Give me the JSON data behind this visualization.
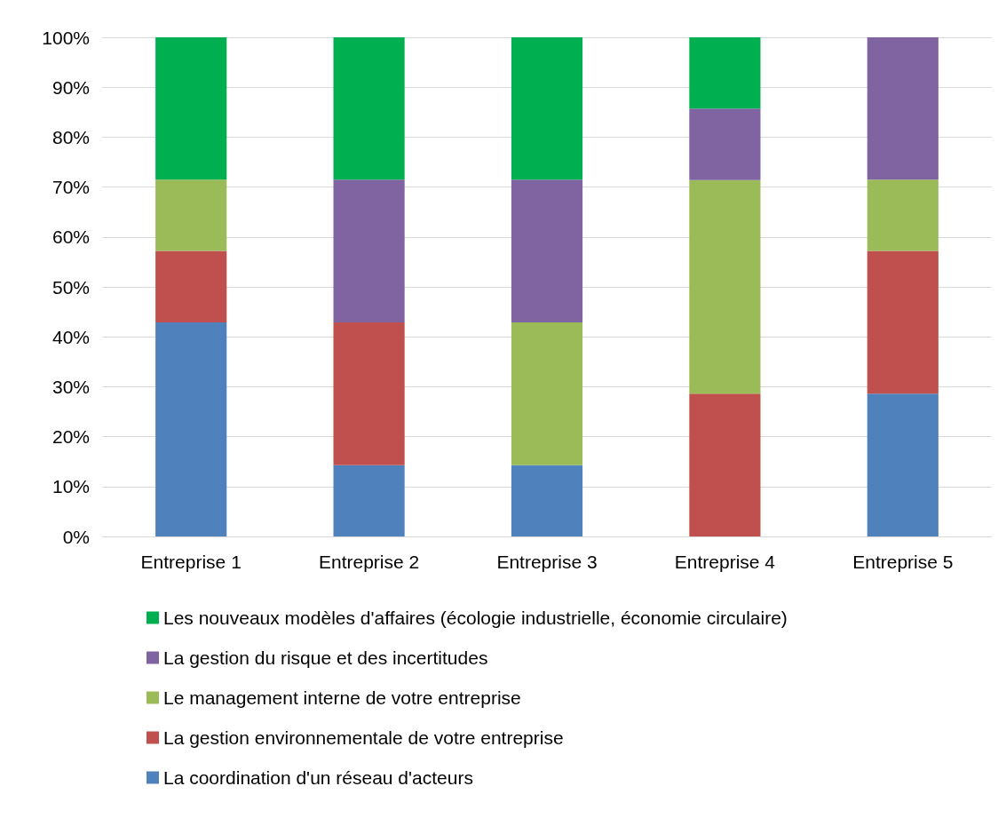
{
  "chart_data": {
    "type": "bar",
    "stacked": true,
    "categories": [
      "Entreprise 1",
      "Entreprise 2",
      "Entreprise 3",
      "Entreprise 4",
      "Entreprise 5"
    ],
    "series": [
      {
        "name": "La coordination d'un réseau d'acteurs",
        "color": "#4f81bd",
        "values": [
          42.9,
          14.3,
          14.3,
          0,
          28.6
        ]
      },
      {
        "name": "La gestion environnementale de votre entreprise",
        "color": "#c0504d",
        "values": [
          14.3,
          28.6,
          0,
          28.6,
          28.6
        ]
      },
      {
        "name": "Le management interne de votre entreprise",
        "color": "#9bbb59",
        "values": [
          14.3,
          0,
          28.6,
          42.8,
          14.3
        ]
      },
      {
        "name": "La gestion du risque et des incertitudes",
        "color": "#8064a2",
        "values": [
          0,
          28.6,
          28.6,
          14.3,
          28.5
        ]
      },
      {
        "name": "Les nouveaux modèles d'affaires (écologie industrielle, économie circulaire)",
        "color": "#00b050",
        "values": [
          28.5,
          28.5,
          28.5,
          14.3,
          0
        ]
      }
    ],
    "ylim": [
      0,
      100
    ],
    "yticks": [
      {
        "value": 0,
        "label": "0%"
      },
      {
        "value": 10,
        "label": "10%"
      },
      {
        "value": 20,
        "label": "20%"
      },
      {
        "value": 30,
        "label": "30%"
      },
      {
        "value": 40,
        "label": "40%"
      },
      {
        "value": 50,
        "label": "50%"
      },
      {
        "value": 60,
        "label": "60%"
      },
      {
        "value": 70,
        "label": "70%"
      },
      {
        "value": 80,
        "label": "80%"
      },
      {
        "value": 90,
        "label": "90%"
      },
      {
        "value": 100,
        "label": "100%"
      }
    ],
    "grid": "y",
    "legend": "bottom"
  }
}
